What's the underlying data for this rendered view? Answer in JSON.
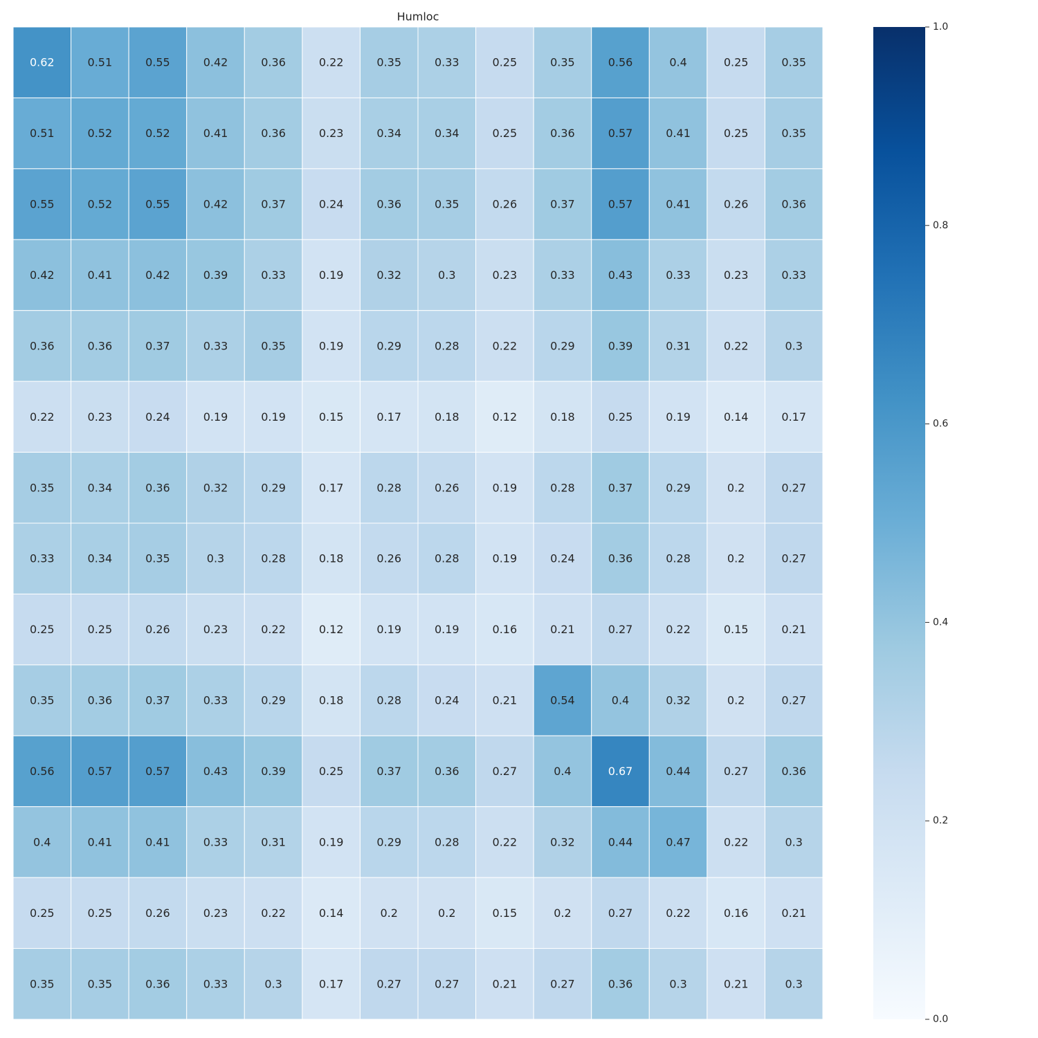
{
  "chart_data": {
    "type": "heatmap",
    "title": "Humloc",
    "xlabel": "",
    "ylabel": "",
    "colormap": "Blues",
    "vmin": 0.0,
    "vmax": 1.0,
    "colorbar_ticks": [
      "0.0",
      "0.2",
      "0.4",
      "0.6",
      "0.8",
      "1.0"
    ],
    "matrix": [
      [
        0.62,
        0.51,
        0.55,
        0.42,
        0.36,
        0.22,
        0.35,
        0.33,
        0.25,
        0.35,
        0.56,
        0.4,
        0.25,
        0.35
      ],
      [
        0.51,
        0.52,
        0.52,
        0.41,
        0.36,
        0.23,
        0.34,
        0.34,
        0.25,
        0.36,
        0.57,
        0.41,
        0.25,
        0.35
      ],
      [
        0.55,
        0.52,
        0.55,
        0.42,
        0.37,
        0.24,
        0.36,
        0.35,
        0.26,
        0.37,
        0.57,
        0.41,
        0.26,
        0.36
      ],
      [
        0.42,
        0.41,
        0.42,
        0.39,
        0.33,
        0.19,
        0.32,
        0.3,
        0.23,
        0.33,
        0.43,
        0.33,
        0.23,
        0.33
      ],
      [
        0.36,
        0.36,
        0.37,
        0.33,
        0.35,
        0.19,
        0.29,
        0.28,
        0.22,
        0.29,
        0.39,
        0.31,
        0.22,
        0.3
      ],
      [
        0.22,
        0.23,
        0.24,
        0.19,
        0.19,
        0.15,
        0.17,
        0.18,
        0.12,
        0.18,
        0.25,
        0.19,
        0.14,
        0.17
      ],
      [
        0.35,
        0.34,
        0.36,
        0.32,
        0.29,
        0.17,
        0.28,
        0.26,
        0.19,
        0.28,
        0.37,
        0.29,
        0.2,
        0.27
      ],
      [
        0.33,
        0.34,
        0.35,
        0.3,
        0.28,
        0.18,
        0.26,
        0.28,
        0.19,
        0.24,
        0.36,
        0.28,
        0.2,
        0.27
      ],
      [
        0.25,
        0.25,
        0.26,
        0.23,
        0.22,
        0.12,
        0.19,
        0.19,
        0.16,
        0.21,
        0.27,
        0.22,
        0.15,
        0.21
      ],
      [
        0.35,
        0.36,
        0.37,
        0.33,
        0.29,
        0.18,
        0.28,
        0.24,
        0.21,
        0.54,
        0.4,
        0.32,
        0.2,
        0.27
      ],
      [
        0.56,
        0.57,
        0.57,
        0.43,
        0.39,
        0.25,
        0.37,
        0.36,
        0.27,
        0.4,
        0.67,
        0.44,
        0.27,
        0.36
      ],
      [
        0.4,
        0.41,
        0.41,
        0.33,
        0.31,
        0.19,
        0.29,
        0.28,
        0.22,
        0.32,
        0.44,
        0.47,
        0.22,
        0.3
      ],
      [
        0.25,
        0.25,
        0.26,
        0.23,
        0.22,
        0.14,
        0.2,
        0.2,
        0.15,
        0.2,
        0.27,
        0.22,
        0.16,
        0.21
      ],
      [
        0.35,
        0.35,
        0.36,
        0.33,
        0.3,
        0.17,
        0.27,
        0.27,
        0.21,
        0.27,
        0.36,
        0.3,
        0.21,
        0.3
      ]
    ]
  }
}
